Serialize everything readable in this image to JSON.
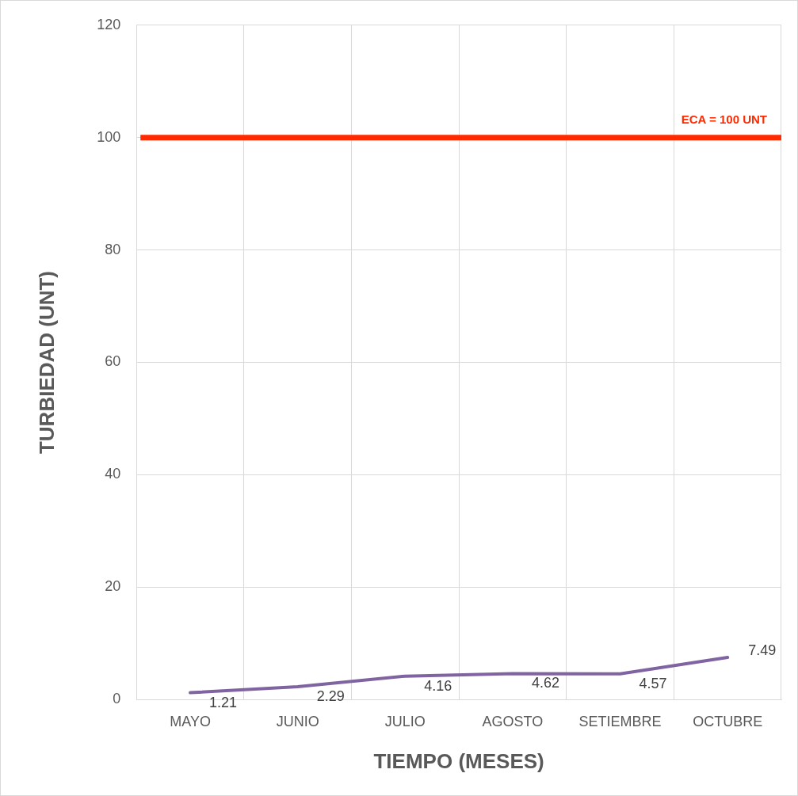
{
  "chart_data": {
    "type": "line",
    "xlabel": "TIEMPO (MESES)",
    "ylabel": "TURBIEDAD (UNT)",
    "categories": [
      "MAYO",
      "JUNIO",
      "JULIO",
      "AGOSTO",
      "SETIEMBRE",
      "OCTUBRE"
    ],
    "series": [
      {
        "color": "#8064a2",
        "values": [
          1.21,
          2.29,
          4.16,
          4.62,
          4.57,
          7.49
        ]
      }
    ],
    "ylim": [
      0,
      120
    ],
    "yticks": [
      0,
      20,
      40,
      60,
      80,
      100,
      120
    ],
    "grid": true,
    "legend": false,
    "marker": "none",
    "line_style": "solid",
    "data_labels": true,
    "ref_lines": [
      {
        "axis": "y",
        "value": 100,
        "label": "ECA = 100 UNT",
        "color": "#ff2a00"
      }
    ]
  }
}
